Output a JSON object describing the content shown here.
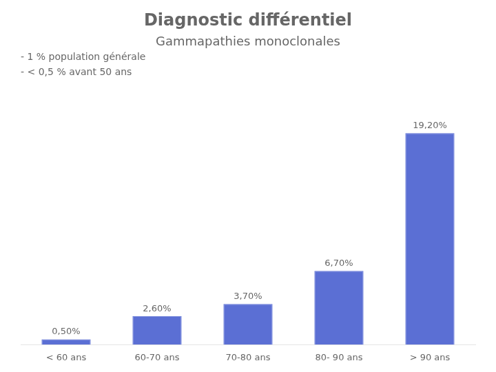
{
  "chart_data": {
    "type": "bar",
    "title": "Diagnostic différentiel",
    "subtitle": "Gammapathies monoclonales",
    "annotations": [
      "- 1 % population générale",
      "- < 0,5 % avant 50 ans"
    ],
    "categories": [
      "< 60 ans",
      "60-70 ans",
      "70-80 ans",
      "80- 90 ans",
      "> 90 ans"
    ],
    "values": [
      0.5,
      2.6,
      3.7,
      6.7,
      19.2
    ],
    "value_labels": [
      "0,50%",
      "2,60%",
      "3,70%",
      "6,70%",
      "19,20%"
    ],
    "data_labels": true,
    "color": "#5b6fd4",
    "ylim": [
      0,
      23
    ],
    "tick_labels": "x",
    "grid": false
  }
}
